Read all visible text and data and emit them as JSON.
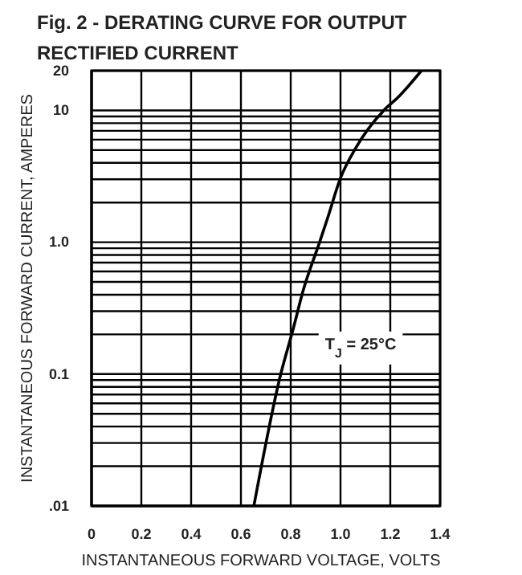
{
  "chart_data": {
    "type": "line",
    "title": "Fig. 2 - DERATING CURVE FOR OUTPUT RECTIFIED CURRENT",
    "xlabel": "INSTANTANEOUS FORWARD VOLTAGE, VOLTS",
    "ylabel": "INSTANTANEOUS FORWARD CURRENT, AMPERES",
    "annotations": [
      "T$_{J}$ = 25°C"
    ],
    "x": [
      0.652,
      0.76,
      0.81,
      0.85,
      0.916,
      0.948,
      1.0,
      1.06,
      1.174,
      1.23,
      1.325
    ],
    "series": [
      {
        "color": "#000000",
        "values": [
          0.01,
          0.1,
          0.22,
          0.43,
          1.0,
          1.52,
          3.07,
          5.14,
          10,
          12.5,
          20
        ]
      }
    ],
    "log": "y",
    "grid": true,
    "marker": "none",
    "line_style": "solid",
    "xlim": [
      0,
      1.4
    ],
    "xticks": [
      0,
      0.2,
      0.4,
      0.6,
      0.8,
      {
        "value": 1,
        "label": "1.0"
      },
      1.2,
      1.4
    ],
    "ylim": [
      0.01,
      20
    ],
    "yticks": [
      {
        "value": 0.01,
        "label": ".01"
      },
      {
        "value": 0.02,
        "label": null
      },
      {
        "value": 0.03,
        "label": null
      },
      {
        "value": 0.04,
        "label": null
      },
      {
        "value": 0.05,
        "label": null
      },
      {
        "value": 0.06,
        "label": null
      },
      {
        "value": 0.07,
        "label": null
      },
      {
        "value": 0.08,
        "label": null
      },
      {
        "value": 0.09,
        "label": null
      },
      0.1,
      {
        "value": 0.2,
        "label": null
      },
      {
        "value": 0.3,
        "label": null
      },
      {
        "value": 0.4,
        "label": null
      },
      {
        "value": 0.5,
        "label": null
      },
      {
        "value": 0.6,
        "label": null
      },
      {
        "value": 0.7,
        "label": null
      },
      {
        "value": 0.8,
        "label": null
      },
      {
        "value": 0.9,
        "label": null
      },
      {
        "value": 1,
        "label": "1.0"
      },
      {
        "value": 2,
        "label": null
      },
      {
        "value": 3,
        "label": null
      },
      {
        "value": 4,
        "label": null
      },
      {
        "value": 5,
        "label": null
      },
      {
        "value": 6,
        "label": null
      },
      {
        "value": 7,
        "label": null
      },
      {
        "value": 8,
        "label": null
      },
      {
        "value": 9,
        "label": null
      },
      10,
      20
    ]
  }
}
